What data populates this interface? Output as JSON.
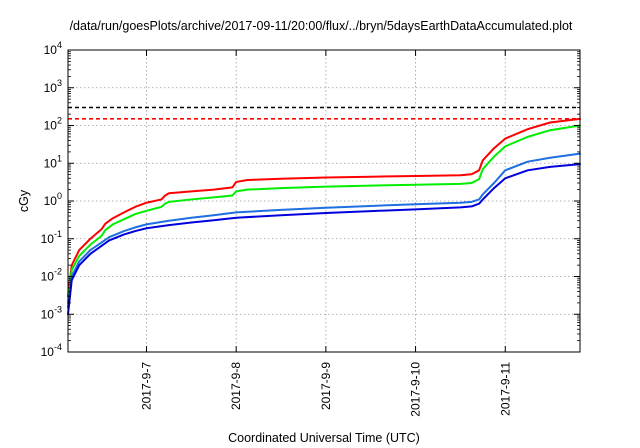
{
  "chart_data": {
    "type": "line",
    "title": "/data/run/goesPlots/archive/2017-09-11/20:00/flux/../bryn/5daysEarthDataAccumulated.plot",
    "xlabel": "Coordinated Universal Time (UTC)",
    "ylabel": "cGy",
    "yscale": "log",
    "ylim": [
      0.0001,
      10000
    ],
    "xlim": [
      "2017-09-06 03:00",
      "2017-09-11 20:00"
    ],
    "grid": true,
    "x_ticks": [
      {
        "x": "2017-09-07 00:00",
        "label": "2017-9-7"
      },
      {
        "x": "2017-09-08 00:00",
        "label": "2017-9-8"
      },
      {
        "x": "2017-09-09 00:00",
        "label": "2017-9-9"
      },
      {
        "x": "2017-09-10 00:00",
        "label": "2017-9-10"
      },
      {
        "x": "2017-09-11 00:00",
        "label": "2017-9-11"
      }
    ],
    "y_ticks": [
      {
        "value": 0.0001,
        "base": "10",
        "exp": "-4"
      },
      {
        "value": 0.001,
        "base": "10",
        "exp": "-3"
      },
      {
        "value": 0.01,
        "base": "10",
        "exp": "-2"
      },
      {
        "value": 0.1,
        "base": "10",
        "exp": "-1"
      },
      {
        "value": 1,
        "base": "10",
        "exp": "0"
      },
      {
        "value": 10,
        "base": "10",
        "exp": "1"
      },
      {
        "value": 100,
        "base": "10",
        "exp": "2"
      },
      {
        "value": 1000,
        "base": "10",
        "exp": "3"
      },
      {
        "value": 10000,
        "base": "10",
        "exp": "4"
      }
    ],
    "reference_lines": [
      {
        "y": 300,
        "color": "#000000",
        "dash": true
      },
      {
        "y": 150,
        "color": "#ff0000",
        "dash": true
      }
    ],
    "series": [
      {
        "color": "#ff0000",
        "points": [
          [
            "2017-09-06 03:00",
            0.003
          ],
          [
            "2017-09-06 04:00",
            0.02
          ],
          [
            "2017-09-06 06:00",
            0.05
          ],
          [
            "2017-09-06 09:00",
            0.1
          ],
          [
            "2017-09-06 12:00",
            0.18
          ],
          [
            "2017-09-06 13:00",
            0.25
          ],
          [
            "2017-09-06 15:00",
            0.35
          ],
          [
            "2017-09-06 18:00",
            0.5
          ],
          [
            "2017-09-06 21:00",
            0.7
          ],
          [
            "2017-09-07 00:00",
            0.9
          ],
          [
            "2017-09-07 04:00",
            1.1
          ],
          [
            "2017-09-07 05:00",
            1.4
          ],
          [
            "2017-09-07 06:00",
            1.6
          ],
          [
            "2017-09-07 12:00",
            1.8
          ],
          [
            "2017-09-07 18:00",
            2.0
          ],
          [
            "2017-09-07 23:00",
            2.3
          ],
          [
            "2017-09-08 00:00",
            3.2
          ],
          [
            "2017-09-08 03:00",
            3.6
          ],
          [
            "2017-09-08 12:00",
            3.9
          ],
          [
            "2017-09-09 00:00",
            4.2
          ],
          [
            "2017-09-09 12:00",
            4.4
          ],
          [
            "2017-09-10 00:00",
            4.6
          ],
          [
            "2017-09-10 12:00",
            4.8
          ],
          [
            "2017-09-10 15:00",
            5.1
          ],
          [
            "2017-09-10 17:00",
            6.5
          ],
          [
            "2017-09-10 18:00",
            12
          ],
          [
            "2017-09-10 21:00",
            25
          ],
          [
            "2017-09-11 00:00",
            45
          ],
          [
            "2017-09-11 06:00",
            80
          ],
          [
            "2017-09-11 12:00",
            120
          ],
          [
            "2017-09-11 20:00",
            150
          ]
        ]
      },
      {
        "color": "#00ee00",
        "points": [
          [
            "2017-09-06 03:00",
            0.002
          ],
          [
            "2017-09-06 04:00",
            0.015
          ],
          [
            "2017-09-06 06:00",
            0.035
          ],
          [
            "2017-09-06 09:00",
            0.07
          ],
          [
            "2017-09-06 12:00",
            0.12
          ],
          [
            "2017-09-06 13:00",
            0.17
          ],
          [
            "2017-09-06 15:00",
            0.24
          ],
          [
            "2017-09-06 18:00",
            0.33
          ],
          [
            "2017-09-06 21:00",
            0.45
          ],
          [
            "2017-09-07 00:00",
            0.55
          ],
          [
            "2017-09-07 04:00",
            0.7
          ],
          [
            "2017-09-07 05:00",
            0.85
          ],
          [
            "2017-09-07 06:00",
            0.95
          ],
          [
            "2017-09-07 12:00",
            1.1
          ],
          [
            "2017-09-07 18:00",
            1.25
          ],
          [
            "2017-09-07 23:00",
            1.4
          ],
          [
            "2017-09-08 00:00",
            1.8
          ],
          [
            "2017-09-08 03:00",
            2.0
          ],
          [
            "2017-09-08 12:00",
            2.2
          ],
          [
            "2017-09-09 00:00",
            2.4
          ],
          [
            "2017-09-09 12:00",
            2.55
          ],
          [
            "2017-09-10 00:00",
            2.7
          ],
          [
            "2017-09-10 12:00",
            2.85
          ],
          [
            "2017-09-10 15:00",
            3.0
          ],
          [
            "2017-09-10 17:00",
            3.8
          ],
          [
            "2017-09-10 18:00",
            7
          ],
          [
            "2017-09-10 21:00",
            15
          ],
          [
            "2017-09-11 00:00",
            28
          ],
          [
            "2017-09-11 06:00",
            50
          ],
          [
            "2017-09-11 12:00",
            75
          ],
          [
            "2017-09-11 20:00",
            100
          ]
        ]
      },
      {
        "color": "#1e6fe0",
        "points": [
          [
            "2017-09-06 03:00",
            0.0015
          ],
          [
            "2017-09-06 04:00",
            0.01
          ],
          [
            "2017-09-06 06:00",
            0.025
          ],
          [
            "2017-09-06 09:00",
            0.05
          ],
          [
            "2017-09-06 12:00",
            0.08
          ],
          [
            "2017-09-06 14:00",
            0.11
          ],
          [
            "2017-09-06 18:00",
            0.16
          ],
          [
            "2017-09-06 21:00",
            0.2
          ],
          [
            "2017-09-07 00:00",
            0.24
          ],
          [
            "2017-09-07 06:00",
            0.3
          ],
          [
            "2017-09-07 12:00",
            0.36
          ],
          [
            "2017-09-07 18:00",
            0.42
          ],
          [
            "2017-09-08 00:00",
            0.5
          ],
          [
            "2017-09-08 12:00",
            0.58
          ],
          [
            "2017-09-09 00:00",
            0.66
          ],
          [
            "2017-09-09 12:00",
            0.74
          ],
          [
            "2017-09-10 00:00",
            0.82
          ],
          [
            "2017-09-10 12:00",
            0.9
          ],
          [
            "2017-09-10 15:00",
            0.95
          ],
          [
            "2017-09-10 17:00",
            1.1
          ],
          [
            "2017-09-10 18:00",
            1.5
          ],
          [
            "2017-09-10 21:00",
            3
          ],
          [
            "2017-09-11 00:00",
            6.5
          ],
          [
            "2017-09-11 06:00",
            11
          ],
          [
            "2017-09-11 12:00",
            14
          ],
          [
            "2017-09-11 20:00",
            18
          ]
        ]
      },
      {
        "color": "#0000dd",
        "points": [
          [
            "2017-09-06 03:00",
            0.001
          ],
          [
            "2017-09-06 04:00",
            0.008
          ],
          [
            "2017-09-06 06:00",
            0.02
          ],
          [
            "2017-09-06 09:00",
            0.04
          ],
          [
            "2017-09-06 12:00",
            0.065
          ],
          [
            "2017-09-06 14:00",
            0.09
          ],
          [
            "2017-09-06 18:00",
            0.13
          ],
          [
            "2017-09-06 21:00",
            0.16
          ],
          [
            "2017-09-07 00:00",
            0.19
          ],
          [
            "2017-09-07 06:00",
            0.23
          ],
          [
            "2017-09-07 12:00",
            0.27
          ],
          [
            "2017-09-07 18:00",
            0.31
          ],
          [
            "2017-09-08 00:00",
            0.36
          ],
          [
            "2017-09-08 12:00",
            0.42
          ],
          [
            "2017-09-09 00:00",
            0.48
          ],
          [
            "2017-09-09 12:00",
            0.54
          ],
          [
            "2017-09-10 00:00",
            0.6
          ],
          [
            "2017-09-10 12:00",
            0.68
          ],
          [
            "2017-09-10 15:00",
            0.72
          ],
          [
            "2017-09-10 17:00",
            0.85
          ],
          [
            "2017-09-10 18:00",
            1.1
          ],
          [
            "2017-09-10 21:00",
            2.2
          ],
          [
            "2017-09-11 00:00",
            4
          ],
          [
            "2017-09-11 06:00",
            6.5
          ],
          [
            "2017-09-11 12:00",
            8
          ],
          [
            "2017-09-11 20:00",
            9.5
          ]
        ]
      }
    ]
  }
}
